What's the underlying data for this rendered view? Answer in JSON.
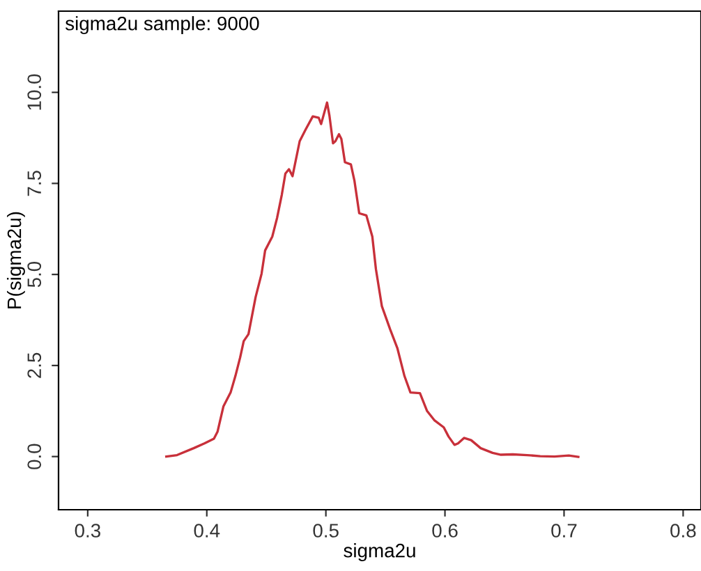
{
  "chart_data": {
    "type": "line",
    "xlabel": "sigma2u",
    "ylabel": "P(sigma2u)",
    "annotations": [
      "sigma2u sample: 9000"
    ],
    "series": [
      {
        "color": "#c8303a",
        "x": [
          0.366,
          0.375,
          0.389,
          0.398,
          0.406,
          0.409,
          0.414,
          0.42,
          0.424,
          0.428,
          0.431,
          0.435,
          0.441,
          0.446,
          0.449,
          0.455,
          0.459,
          0.463,
          0.466,
          0.469,
          0.472,
          0.478,
          0.483,
          0.489,
          0.494,
          0.496,
          0.501,
          0.503,
          0.506,
          0.508,
          0.511,
          0.513,
          0.516,
          0.521,
          0.524,
          0.528,
          0.534,
          0.539,
          0.542,
          0.547,
          0.554,
          0.56,
          0.566,
          0.571,
          0.579,
          0.585,
          0.591,
          0.599,
          0.603,
          0.608,
          0.611,
          0.616,
          0.622,
          0.63,
          0.64,
          0.647,
          0.657,
          0.669,
          0.68,
          0.692,
          0.704,
          0.712
        ],
        "values": [
          0,
          0.04,
          0.23,
          0.36,
          0.49,
          0.68,
          1.38,
          1.76,
          2.21,
          2.72,
          3.17,
          3.36,
          4.38,
          5.02,
          5.66,
          6.04,
          6.55,
          7.19,
          7.77,
          7.89,
          7.7,
          8.66,
          8.98,
          9.34,
          9.3,
          9.13,
          9.72,
          9.36,
          8.6,
          8.66,
          8.85,
          8.72,
          8.08,
          8.02,
          7.57,
          6.68,
          6.62,
          6.04,
          5.15,
          4.13,
          3.49,
          2.98,
          2.21,
          1.76,
          1.74,
          1.25,
          1.0,
          0.8,
          0.55,
          0.32,
          0.36,
          0.51,
          0.45,
          0.23,
          0.1,
          0.05,
          0.06,
          0.04,
          0.01,
          0,
          0.03,
          -0.01
        ]
      }
    ],
    "xlim": [
      0.2755,
      0.815
    ],
    "xticks": [
      0.3,
      0.4,
      0.5,
      0.6,
      0.7,
      0.8
    ],
    "ylim": [
      -1.46,
      12.23
    ],
    "yticks": [
      {
        "value": 0,
        "label": "0.0"
      },
      {
        "value": 2.5,
        "label": "2.5"
      },
      {
        "value": 5,
        "label": "5.0"
      },
      {
        "value": 7.5,
        "label": "7.5"
      },
      {
        "value": 10,
        "label": "10.0"
      }
    ],
    "grid": false,
    "legend": false,
    "marker": "none",
    "line_style": "solid"
  }
}
